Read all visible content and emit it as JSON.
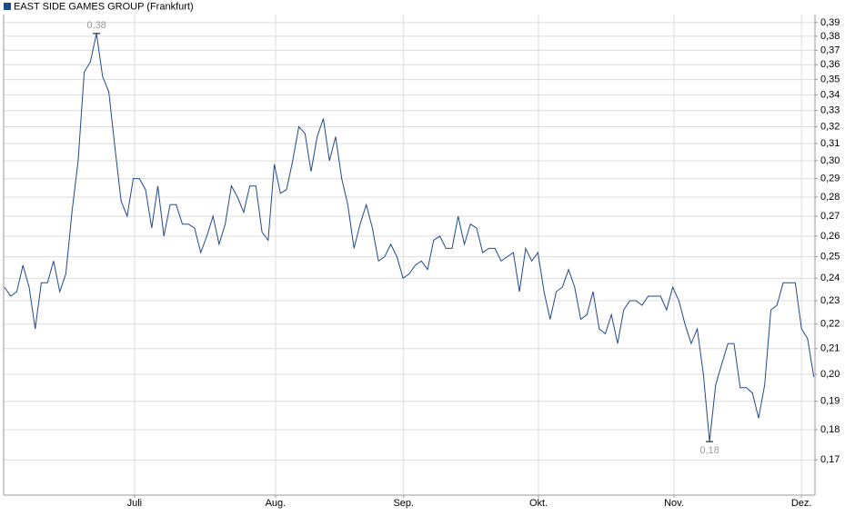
{
  "chart_data": {
    "type": "line",
    "log_scale": true,
    "grid": true,
    "legend": "top-left",
    "max_label": "0,38",
    "min_label": "0,18",
    "series": [
      {
        "name": "EAST SIDE GAMES GROUP (Frankfurt)",
        "color": "#1f4a8a",
        "values": [
          0.236,
          0.232,
          0.234,
          0.246,
          0.236,
          0.218,
          0.238,
          0.238,
          0.248,
          0.234,
          0.242,
          0.272,
          0.3,
          0.355,
          0.362,
          0.382,
          0.352,
          0.342,
          0.308,
          0.278,
          0.27,
          0.29,
          0.29,
          0.284,
          0.264,
          0.286,
          0.26,
          0.276,
          0.276,
          0.266,
          0.266,
          0.264,
          0.252,
          0.26,
          0.27,
          0.256,
          0.266,
          0.286,
          0.28,
          0.272,
          0.286,
          0.286,
          0.262,
          0.258,
          0.298,
          0.282,
          0.284,
          0.3,
          0.32,
          0.316,
          0.294,
          0.314,
          0.325,
          0.3,
          0.314,
          0.29,
          0.276,
          0.254,
          0.266,
          0.276,
          0.264,
          0.248,
          0.25,
          0.256,
          0.25,
          0.24,
          0.242,
          0.246,
          0.248,
          0.244,
          0.258,
          0.26,
          0.254,
          0.254,
          0.27,
          0.256,
          0.266,
          0.264,
          0.252,
          0.254,
          0.254,
          0.248,
          0.25,
          0.252,
          0.234,
          0.254,
          0.248,
          0.252,
          0.234,
          0.222,
          0.234,
          0.236,
          0.244,
          0.236,
          0.222,
          0.224,
          0.234,
          0.218,
          0.216,
          0.224,
          0.212,
          0.226,
          0.23,
          0.23,
          0.228,
          0.232,
          0.232,
          0.232,
          0.226,
          0.236,
          0.23,
          0.22,
          0.212,
          0.218,
          0.2,
          0.176,
          0.196,
          0.204,
          0.212,
          0.212,
          0.195,
          0.195,
          0.193,
          0.184,
          0.196,
          0.226,
          0.228,
          0.238,
          0.238,
          0.238,
          0.218,
          0.214,
          0.199
        ]
      }
    ],
    "xlim": [
      -0.15,
      132.2
    ],
    "xticks": [
      {
        "value": 21.2,
        "label": "Juli"
      },
      {
        "value": 44.2,
        "label": "Aug."
      },
      {
        "value": 65.1,
        "label": "Sep."
      },
      {
        "value": 87.1,
        "label": "Okt."
      },
      {
        "value": 109.2,
        "label": "Nov."
      },
      {
        "value": 130.0,
        "label": "Dez."
      }
    ],
    "ylim": [
      0.159,
      0.396
    ],
    "yticks": [
      {
        "value": 0.39,
        "label": "0,39"
      },
      {
        "value": 0.38,
        "label": "0,38"
      },
      {
        "value": 0.37,
        "label": "0,37"
      },
      {
        "value": 0.36,
        "label": "0,36"
      },
      {
        "value": 0.35,
        "label": "0,35"
      },
      {
        "value": 0.34,
        "label": "0,34"
      },
      {
        "value": 0.33,
        "label": "0,33"
      },
      {
        "value": 0.32,
        "label": "0,32"
      },
      {
        "value": 0.31,
        "label": "0,31"
      },
      {
        "value": 0.3,
        "label": "0,30"
      },
      {
        "value": 0.29,
        "label": "0,29"
      },
      {
        "value": 0.28,
        "label": "0,28"
      },
      {
        "value": 0.27,
        "label": "0,27"
      },
      {
        "value": 0.26,
        "label": "0,26"
      },
      {
        "value": 0.25,
        "label": "0,25"
      },
      {
        "value": 0.24,
        "label": "0,24"
      },
      {
        "value": 0.23,
        "label": "0,23"
      },
      {
        "value": 0.22,
        "label": "0,22"
      },
      {
        "value": 0.21,
        "label": "0,21"
      },
      {
        "value": 0.2,
        "label": "0,20"
      },
      {
        "value": 0.19,
        "label": "0,19"
      },
      {
        "value": 0.18,
        "label": "0,18"
      },
      {
        "value": 0.17,
        "label": "0,17"
      }
    ]
  }
}
